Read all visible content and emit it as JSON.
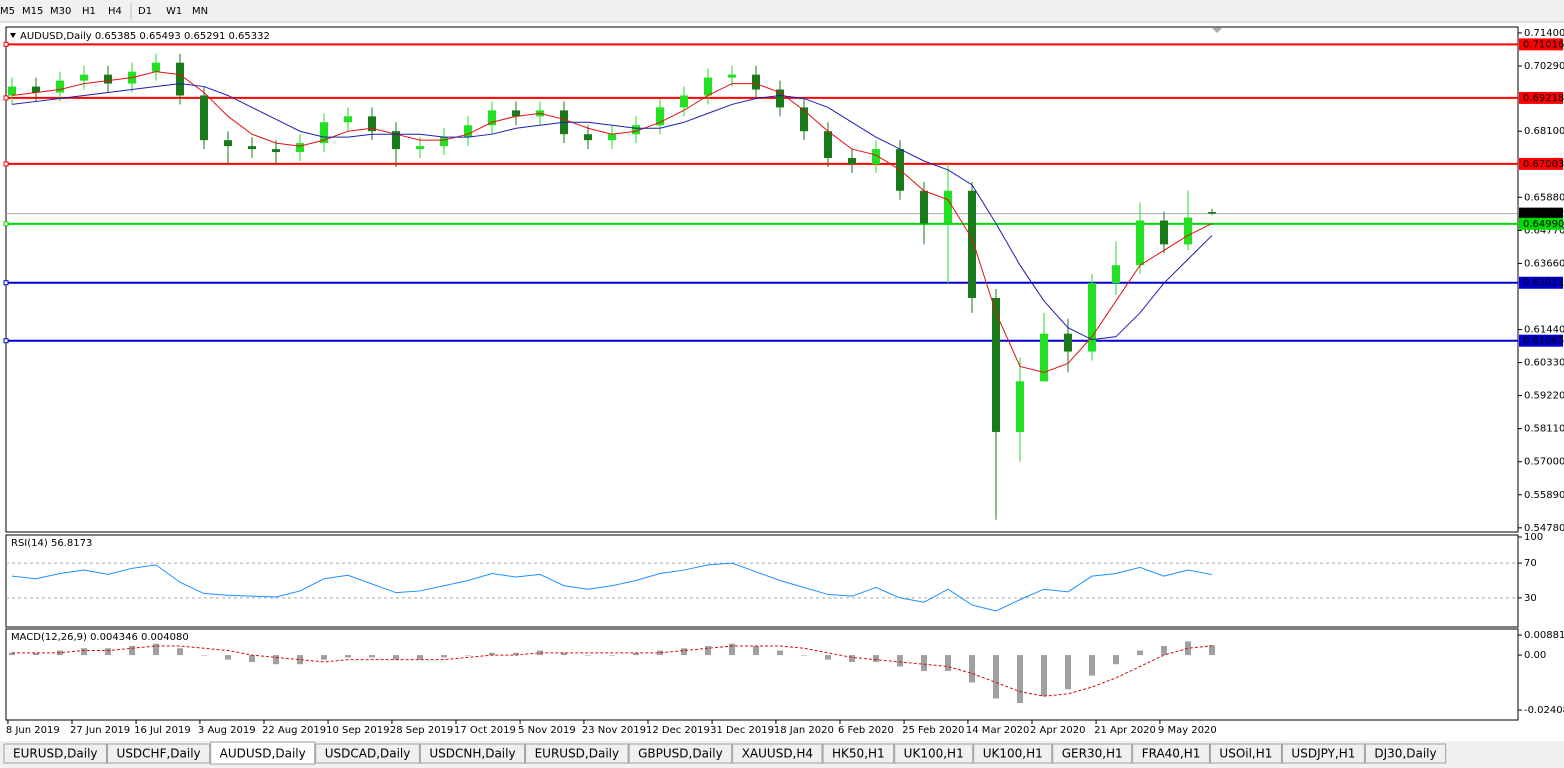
{
  "toolbar": {
    "timeframes": [
      "M5",
      "M15",
      "M30",
      "H1",
      "H4",
      "D1",
      "W1",
      "MN"
    ]
  },
  "chart_data": [
    {
      "type": "candlestick",
      "title": "AUDUSD,Daily  0.65385 0.65493 0.65291 0.65332",
      "up_color": "#22e022",
      "down_color": "#1a7a1a",
      "open": [
        0.693,
        0.696,
        0.694,
        0.698,
        0.7,
        0.697,
        0.701,
        0.704,
        0.693,
        0.678,
        0.676,
        0.675,
        0.674,
        0.677,
        0.684,
        0.686,
        0.681,
        0.675,
        0.676,
        0.679,
        0.683,
        0.688,
        0.686,
        0.688,
        0.68,
        0.678,
        0.68,
        0.683,
        0.689,
        0.693,
        0.699,
        0.7,
        0.695,
        0.689,
        0.681,
        0.672,
        0.67,
        0.675,
        0.661,
        0.65,
        0.661,
        0.625,
        0.58,
        0.597,
        0.613,
        0.607,
        0.63,
        0.636,
        0.651,
        0.643,
        0.65385
      ],
      "high": [
        0.699,
        0.699,
        0.701,
        0.703,
        0.703,
        0.704,
        0.707,
        0.707,
        0.696,
        0.681,
        0.679,
        0.678,
        0.68,
        0.687,
        0.689,
        0.689,
        0.684,
        0.679,
        0.682,
        0.686,
        0.691,
        0.691,
        0.691,
        0.691,
        0.683,
        0.683,
        0.686,
        0.692,
        0.696,
        0.702,
        0.703,
        0.703,
        0.698,
        0.692,
        0.684,
        0.675,
        0.678,
        0.678,
        0.664,
        0.67,
        0.664,
        0.628,
        0.605,
        0.62,
        0.618,
        0.633,
        0.644,
        0.657,
        0.654,
        0.661,
        0.65493
      ],
      "low": [
        0.69,
        0.691,
        0.691,
        0.695,
        0.694,
        0.694,
        0.698,
        0.69,
        0.675,
        0.67,
        0.672,
        0.67,
        0.671,
        0.674,
        0.681,
        0.678,
        0.669,
        0.672,
        0.673,
        0.676,
        0.68,
        0.683,
        0.683,
        0.677,
        0.675,
        0.675,
        0.677,
        0.68,
        0.686,
        0.69,
        0.696,
        0.692,
        0.686,
        0.678,
        0.669,
        0.667,
        0.667,
        0.658,
        0.643,
        0.63,
        0.62,
        0.5505,
        0.57,
        0.598,
        0.6,
        0.604,
        0.626,
        0.633,
        0.64,
        0.641,
        0.65291
      ],
      "close": [
        0.696,
        0.694,
        0.698,
        0.7,
        0.697,
        0.701,
        0.704,
        0.693,
        0.678,
        0.676,
        0.675,
        0.674,
        0.677,
        0.684,
        0.686,
        0.681,
        0.675,
        0.676,
        0.679,
        0.683,
        0.688,
        0.686,
        0.688,
        0.68,
        0.678,
        0.68,
        0.683,
        0.689,
        0.693,
        0.699,
        0.7,
        0.695,
        0.689,
        0.681,
        0.672,
        0.67,
        0.675,
        0.661,
        0.65,
        0.661,
        0.625,
        0.58,
        0.597,
        0.613,
        0.607,
        0.63,
        0.636,
        0.651,
        0.643,
        0.652,
        0.65332
      ],
      "series": [
        {
          "color": "#e01010",
          "values": [
            0.693,
            0.694,
            0.695,
            0.697,
            0.698,
            0.699,
            0.701,
            0.7,
            0.694,
            0.686,
            0.68,
            0.677,
            0.676,
            0.678,
            0.681,
            0.682,
            0.68,
            0.678,
            0.678,
            0.68,
            0.684,
            0.686,
            0.687,
            0.685,
            0.682,
            0.68,
            0.681,
            0.684,
            0.688,
            0.693,
            0.697,
            0.697,
            0.694,
            0.688,
            0.681,
            0.675,
            0.673,
            0.668,
            0.661,
            0.658,
            0.645,
            0.62,
            0.602,
            0.6,
            0.603,
            0.612,
            0.624,
            0.636,
            0.641,
            0.646,
            0.65
          ]
        },
        {
          "color": "#1c1cb0",
          "values": [
            0.69,
            0.691,
            0.692,
            0.693,
            0.694,
            0.695,
            0.696,
            0.697,
            0.696,
            0.693,
            0.689,
            0.685,
            0.681,
            0.679,
            0.679,
            0.68,
            0.68,
            0.68,
            0.679,
            0.679,
            0.68,
            0.682,
            0.683,
            0.684,
            0.684,
            0.683,
            0.682,
            0.682,
            0.684,
            0.687,
            0.69,
            0.692,
            0.693,
            0.692,
            0.689,
            0.684,
            0.679,
            0.675,
            0.671,
            0.668,
            0.663,
            0.65,
            0.636,
            0.624,
            0.615,
            0.611,
            0.612,
            0.62,
            0.63,
            0.638,
            0.646
          ]
        }
      ],
      "ylim": [
        0.5464,
        0.716
      ],
      "yticks": [
        {
          "value": 0.714,
          "label": "0.71400"
        },
        {
          "value": 0.7029,
          "label": "0.70290"
        },
        {
          "value": 0.681,
          "label": "0.68100"
        },
        {
          "value": 0.6588,
          "label": "0.65880"
        },
        {
          "value": 0.6477,
          "label": "0.64770"
        },
        {
          "value": 0.6366,
          "label": "0.63660"
        },
        {
          "value": 0.6144,
          "label": "0.61440"
        },
        {
          "value": 0.6033,
          "label": "0.60330"
        },
        {
          "value": 0.5922,
          "label": "0.59220"
        },
        {
          "value": 0.5811,
          "label": "0.58110"
        },
        {
          "value": 0.57,
          "label": "0.57000"
        },
        {
          "value": 0.5589,
          "label": "0.55890"
        },
        {
          "value": 0.5478,
          "label": "0.54780"
        }
      ],
      "levels": [
        {
          "value": 0.71016,
          "label": "0.71016",
          "color": "#ff0000"
        },
        {
          "value": 0.69218,
          "label": "0.69218",
          "color": "#ff0000"
        },
        {
          "value": 0.67003,
          "label": "0.67003",
          "color": "#ff0000"
        },
        {
          "value": 0.65332,
          "label": "0.65332",
          "color": "#000000"
        },
        {
          "value": 0.6499,
          "label": "0.64990",
          "color": "#00dd00"
        },
        {
          "value": 0.63011,
          "label": "0.63011",
          "color": "#0000cc"
        },
        {
          "value": 0.61065,
          "label": "0.61065",
          "color": "#0000cc"
        }
      ],
      "xticks": [
        {
          "value": -0.17,
          "label": "8 Jun 2019"
        },
        {
          "value": 2.5,
          "label": "27 Jun 2019"
        },
        {
          "value": 5.17,
          "label": "16 Jul 2019"
        },
        {
          "value": 7.83,
          "label": "3 Aug 2019"
        },
        {
          "value": 10.5,
          "label": "22 Aug 2019"
        },
        {
          "value": 13.17,
          "label": "10 Sep 2019"
        },
        {
          "value": 15.83,
          "label": "28 Sep 2019"
        },
        {
          "value": 18.5,
          "label": "17 Oct 2019"
        },
        {
          "value": 21.17,
          "label": "5 Nov 2019"
        },
        {
          "value": 23.83,
          "label": "23 Nov 2019"
        },
        {
          "value": 26.5,
          "label": "12 Dec 2019"
        },
        {
          "value": 29.17,
          "label": "31 Dec 2019"
        },
        {
          "value": 31.83,
          "label": "18 Jan 2020"
        },
        {
          "value": 34.5,
          "label": "6 Feb 2020"
        },
        {
          "value": 37.17,
          "label": "25 Feb 2020"
        },
        {
          "value": 39.83,
          "label": "14 Mar 2020"
        },
        {
          "value": 42.5,
          "label": "2 Apr 2020"
        },
        {
          "value": 45.17,
          "label": "21 Apr 2020"
        },
        {
          "value": 47.83,
          "label": "9 May 2020"
        }
      ]
    },
    {
      "type": "line",
      "title": "RSI(14) 56.8173",
      "color": "#1e90ff",
      "values": [
        55,
        52,
        58,
        62,
        57,
        64,
        68,
        48,
        35,
        33,
        32,
        31,
        38,
        52,
        56,
        46,
        36,
        38,
        44,
        50,
        58,
        54,
        57,
        44,
        40,
        44,
        50,
        58,
        62,
        68,
        70,
        60,
        50,
        42,
        34,
        32,
        42,
        30,
        25,
        40,
        22,
        15,
        28,
        40,
        37,
        55,
        58,
        65,
        55,
        62,
        56.8173
      ],
      "ylim": [
        0,
        100
      ],
      "yticks": [
        100,
        70,
        30
      ]
    },
    {
      "type": "macd",
      "title": "MACD(12,26,9) 0.004346 0.004080",
      "color": "#a0a0a0",
      "signal_color": "#d01010",
      "values": [
        0.001,
        0.001,
        0.002,
        0.003,
        0.003,
        0.004,
        0.005,
        0.003,
        0,
        -0.002,
        -0.003,
        -0.004,
        -0.004,
        -0.002,
        -0.001,
        -0.001,
        -0.002,
        -0.002,
        -0.001,
        0,
        0.001,
        0.001,
        0.002,
        0.001,
        0,
        0,
        0.001,
        0.002,
        0.003,
        0.004,
        0.005,
        0.004,
        0.002,
        0,
        -0.002,
        -0.003,
        -0.003,
        -0.005,
        -0.007,
        -0.007,
        -0.012,
        -0.019,
        -0.021,
        -0.018,
        -0.015,
        -0.009,
        -0.004,
        0.002,
        0.004,
        0.006,
        0.004346
      ],
      "signal": [
        0.001,
        0.001,
        0.001,
        0.002,
        0.002,
        0.003,
        0.004,
        0.004,
        0.003,
        0.002,
        0,
        -0.001,
        -0.002,
        -0.003,
        -0.002,
        -0.002,
        -0.002,
        -0.002,
        -0.002,
        -0.001,
        0,
        0,
        0.001,
        0.001,
        0.001,
        0.001,
        0.001,
        0.001,
        0.002,
        0.003,
        0.004,
        0.004,
        0.004,
        0.003,
        0.001,
        -0.001,
        -0.002,
        -0.003,
        -0.004,
        -0.005,
        -0.008,
        -0.012,
        -0.016,
        -0.018,
        -0.017,
        -0.014,
        -0.01,
        -0.005,
        0,
        0.003,
        0.00408
      ],
      "ylim": [
        -0.028,
        0.011
      ],
      "yticks": [
        {
          "value": 0.008815,
          "label": "0.008815"
        },
        {
          "value": 0,
          "label": "0.00"
        },
        {
          "value": -0.024082,
          "label": "-0.024082"
        }
      ]
    }
  ],
  "tabs": [
    "EURUSD,Daily",
    "USDCHF,Daily",
    "AUDUSD,Daily",
    "USDCAD,Daily",
    "USDCNH,Daily",
    "EURUSD,Daily",
    "GBPUSD,Daily",
    "XAUUSD,H4",
    "HK50,H1",
    "UK100,H1",
    "UK100,H1",
    "GER30,H1",
    "FRA40,H1",
    "USOil,H1",
    "USDJPY,H1",
    "DJ30,Daily"
  ],
  "active_tab": 2
}
